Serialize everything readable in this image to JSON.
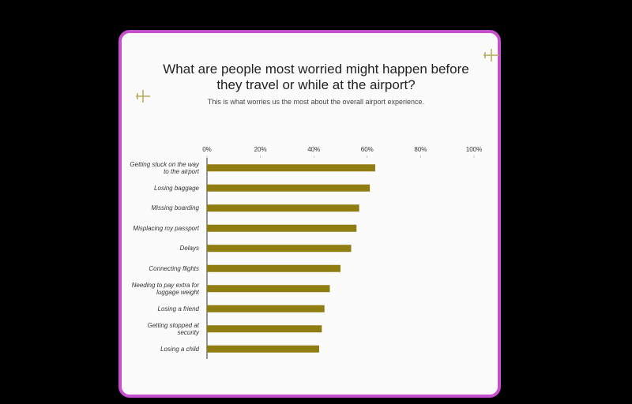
{
  "chart_data": {
    "type": "hbar",
    "title": "What are people most worried might happen before they travel or while at the airport?",
    "subtitle": "This is what worries us the most about the overall airport experience.",
    "categories": [
      "Getting stuck on the way to the airport",
      "Losing baggage",
      "Missing boarding",
      "Misplacing my passport",
      "Delays",
      "Connecting flights",
      "Needing to pay extra for luggage weight",
      "Losing a friend",
      "Getting stopped at security",
      "Losing a child"
    ],
    "values": [
      63,
      61,
      57,
      56,
      54,
      50,
      46,
      44,
      43,
      42
    ],
    "color": "#8f7d12",
    "xlim": [
      0,
      100
    ],
    "xticks": [
      {
        "value": 0,
        "label": "0%"
      },
      {
        "value": 20,
        "label": "20%"
      },
      {
        "value": 40,
        "label": "40%"
      },
      {
        "value": 60,
        "label": "60%"
      },
      {
        "value": 80,
        "label": "80%"
      },
      {
        "value": 100,
        "label": "100%"
      }
    ]
  }
}
